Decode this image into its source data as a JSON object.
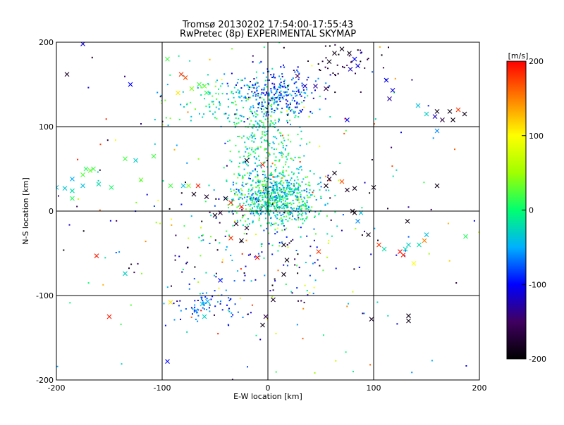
{
  "chart_data": {
    "type": "scatter",
    "title": "Tromsø 20130202 17:54:00-17:55:43",
    "subtitle": "RwPretec (8p) EXPERIMENTAL SKYMAP",
    "xlabel": "E-W location [km]",
    "ylabel": "N-S location [km]",
    "xlim": [
      -200,
      200
    ],
    "ylim": [
      -200,
      200
    ],
    "x_ticks": [
      -200,
      -100,
      0,
      100,
      200
    ],
    "y_ticks": [
      -200,
      -100,
      0,
      100,
      200
    ],
    "x_tick_labels": [
      "-200",
      "-100",
      "0",
      "100",
      "200"
    ],
    "y_tick_labels": [
      "-200",
      "-100",
      "0",
      "100",
      "200"
    ],
    "grid": true,
    "colorbar": {
      "label": "[m/s]",
      "range": [
        -200,
        200
      ],
      "ticks": [
        200,
        100,
        0,
        -100,
        -200
      ],
      "tick_labels": [
        "200",
        "100",
        "0",
        "-100",
        "-200"
      ],
      "colors": [
        "#000000",
        "#400060",
        "#0000ff",
        "#00b0ff",
        "#00ff70",
        "#a0ff00",
        "#ffff00",
        "#ff8000",
        "#ff0000"
      ]
    },
    "series": [
      {
        "marker": "x",
        "points": [
          [
            -190,
            162,
            -180
          ],
          [
            -175,
            198,
            -110
          ],
          [
            -130,
            150,
            -100
          ],
          [
            -95,
            180,
            20
          ],
          [
            -85,
            140,
            110
          ],
          [
            -82,
            162,
            180
          ],
          [
            -78,
            158,
            170
          ],
          [
            -72,
            145,
            40
          ],
          [
            -65,
            150,
            20
          ],
          [
            -60,
            148,
            30
          ],
          [
            -58,
            140,
            10
          ],
          [
            -150,
            -125,
            190
          ],
          [
            -162,
            -53,
            190
          ],
          [
            -135,
            -74,
            -30
          ],
          [
            -148,
            28,
            5
          ],
          [
            -160,
            32,
            -20
          ],
          [
            -175,
            30,
            -40
          ],
          [
            -185,
            15,
            10
          ],
          [
            -192,
            27,
            -35
          ],
          [
            -200,
            28,
            -40
          ],
          [
            -185,
            38,
            -50
          ],
          [
            -185,
            24,
            -20
          ],
          [
            -165,
            50,
            20
          ],
          [
            -168,
            48,
            30
          ],
          [
            -172,
            50,
            10
          ],
          [
            -175,
            43,
            25
          ],
          [
            -125,
            60,
            -30
          ],
          [
            -135,
            62,
            20
          ],
          [
            -120,
            37,
            30
          ],
          [
            -108,
            65,
            20
          ],
          [
            -92,
            30,
            20
          ],
          [
            -80,
            30,
            -40
          ],
          [
            -75,
            30,
            40
          ],
          [
            -70,
            20,
            -190
          ],
          [
            -66,
            30,
            190
          ],
          [
            -58,
            17,
            -180
          ],
          [
            -50,
            -5,
            -190
          ],
          [
            -45,
            -2,
            -170
          ],
          [
            -40,
            15,
            -180
          ],
          [
            -35,
            10,
            180
          ],
          [
            -25,
            5,
            190
          ],
          [
            -30,
            -15,
            -180
          ],
          [
            -20,
            -20,
            -180
          ],
          [
            -25,
            -35,
            -190
          ],
          [
            -35,
            -32,
            180
          ],
          [
            -45,
            -82,
            -100
          ],
          [
            -57,
            -107,
            -50
          ],
          [
            -62,
            -110,
            -40
          ],
          [
            -68,
            -118,
            -60
          ],
          [
            -60,
            -125,
            -30
          ],
          [
            -92,
            -108,
            110
          ],
          [
            -95,
            -178,
            -100
          ],
          [
            -5,
            55,
            190
          ],
          [
            -20,
            60,
            -190
          ],
          [
            -10,
            -55,
            200
          ],
          [
            -5,
            -135,
            -190
          ],
          [
            -2,
            -125,
            -160
          ],
          [
            15,
            -40,
            -190
          ],
          [
            18,
            -58,
            -190
          ],
          [
            15,
            -75,
            -190
          ],
          [
            5,
            -105,
            -180
          ],
          [
            48,
            -48,
            180
          ],
          [
            55,
            30,
            -190
          ],
          [
            58,
            38,
            -180
          ],
          [
            63,
            45,
            -190
          ],
          [
            70,
            35,
            170
          ],
          [
            75,
            25,
            -180
          ],
          [
            80,
            0,
            -190
          ],
          [
            82,
            -2,
            -190
          ],
          [
            88,
            -2,
            -40
          ],
          [
            85,
            -12,
            -60
          ],
          [
            82,
            27,
            -190
          ],
          [
            100,
            28,
            -190
          ],
          [
            95,
            -28,
            -190
          ],
          [
            105,
            -40,
            180
          ],
          [
            110,
            -45,
            -20
          ],
          [
            125,
            -48,
            200
          ],
          [
            128,
            -52,
            190
          ],
          [
            138,
            -62,
            100
          ],
          [
            143,
            -40,
            -20
          ],
          [
            150,
            -28,
            -40
          ],
          [
            148,
            -35,
            150
          ],
          [
            133,
            -40,
            -30
          ],
          [
            130,
            -45,
            -25
          ],
          [
            160,
            30,
            -190
          ],
          [
            160,
            118,
            -190
          ],
          [
            165,
            108,
            -170
          ],
          [
            158,
            112,
            -120
          ],
          [
            172,
            118,
            -190
          ],
          [
            175,
            108,
            -190
          ],
          [
            180,
            120,
            180
          ],
          [
            186,
            115,
            -190
          ],
          [
            187,
            -30,
            10
          ],
          [
            160,
            95,
            -60
          ],
          [
            150,
            115,
            -30
          ],
          [
            142,
            125,
            -40
          ],
          [
            118,
            143,
            -110
          ],
          [
            112,
            155,
            -100
          ],
          [
            115,
            133,
            -130
          ],
          [
            132,
            -12,
            -190
          ],
          [
            133,
            -124,
            -190
          ],
          [
            133,
            -130,
            -190
          ],
          [
            98,
            -128,
            -180
          ],
          [
            70,
            192,
            -190
          ],
          [
            63,
            187,
            -190
          ],
          [
            58,
            177,
            -190
          ],
          [
            77,
            187,
            -190
          ],
          [
            78,
            168,
            -120
          ],
          [
            82,
            180,
            -100
          ],
          [
            85,
            172,
            -110
          ],
          [
            75,
            108,
            -100
          ],
          [
            28,
            160,
            -150
          ],
          [
            35,
            148,
            -120
          ],
          [
            45,
            148,
            -130
          ],
          [
            55,
            145,
            -160
          ]
        ]
      },
      {
        "marker": "dot",
        "clusters": [
          {
            "cx": 8,
            "cy": 15,
            "sx": 20,
            "sy": 15,
            "n": 700,
            "vmin": -80,
            "vmax": 40
          },
          {
            "cx": 0,
            "cy": 80,
            "sx": 18,
            "sy": 40,
            "n": 380,
            "vmin": -60,
            "vmax": 40
          },
          {
            "cx": 10,
            "cy": 140,
            "sx": 20,
            "sy": 15,
            "n": 240,
            "vmin": -130,
            "vmax": -40
          },
          {
            "cx": -48,
            "cy": 130,
            "sx": 25,
            "sy": 18,
            "n": 110,
            "vmin": -60,
            "vmax": 40
          },
          {
            "cx": 70,
            "cy": 175,
            "sx": 20,
            "sy": 15,
            "n": 40,
            "vmin": -200,
            "vmax": -150
          },
          {
            "cx": -55,
            "cy": -112,
            "sx": 15,
            "sy": 10,
            "n": 60,
            "vmin": -120,
            "vmax": -40
          },
          {
            "cx": 0,
            "cy": -40,
            "sx": 50,
            "sy": 35,
            "n": 140,
            "vmin": -200,
            "vmax": 40
          },
          {
            "cx": 0,
            "cy": 0,
            "sx": 110,
            "sy": 110,
            "n": 280,
            "vmin": -200,
            "vmax": 200
          }
        ]
      }
    ]
  }
}
